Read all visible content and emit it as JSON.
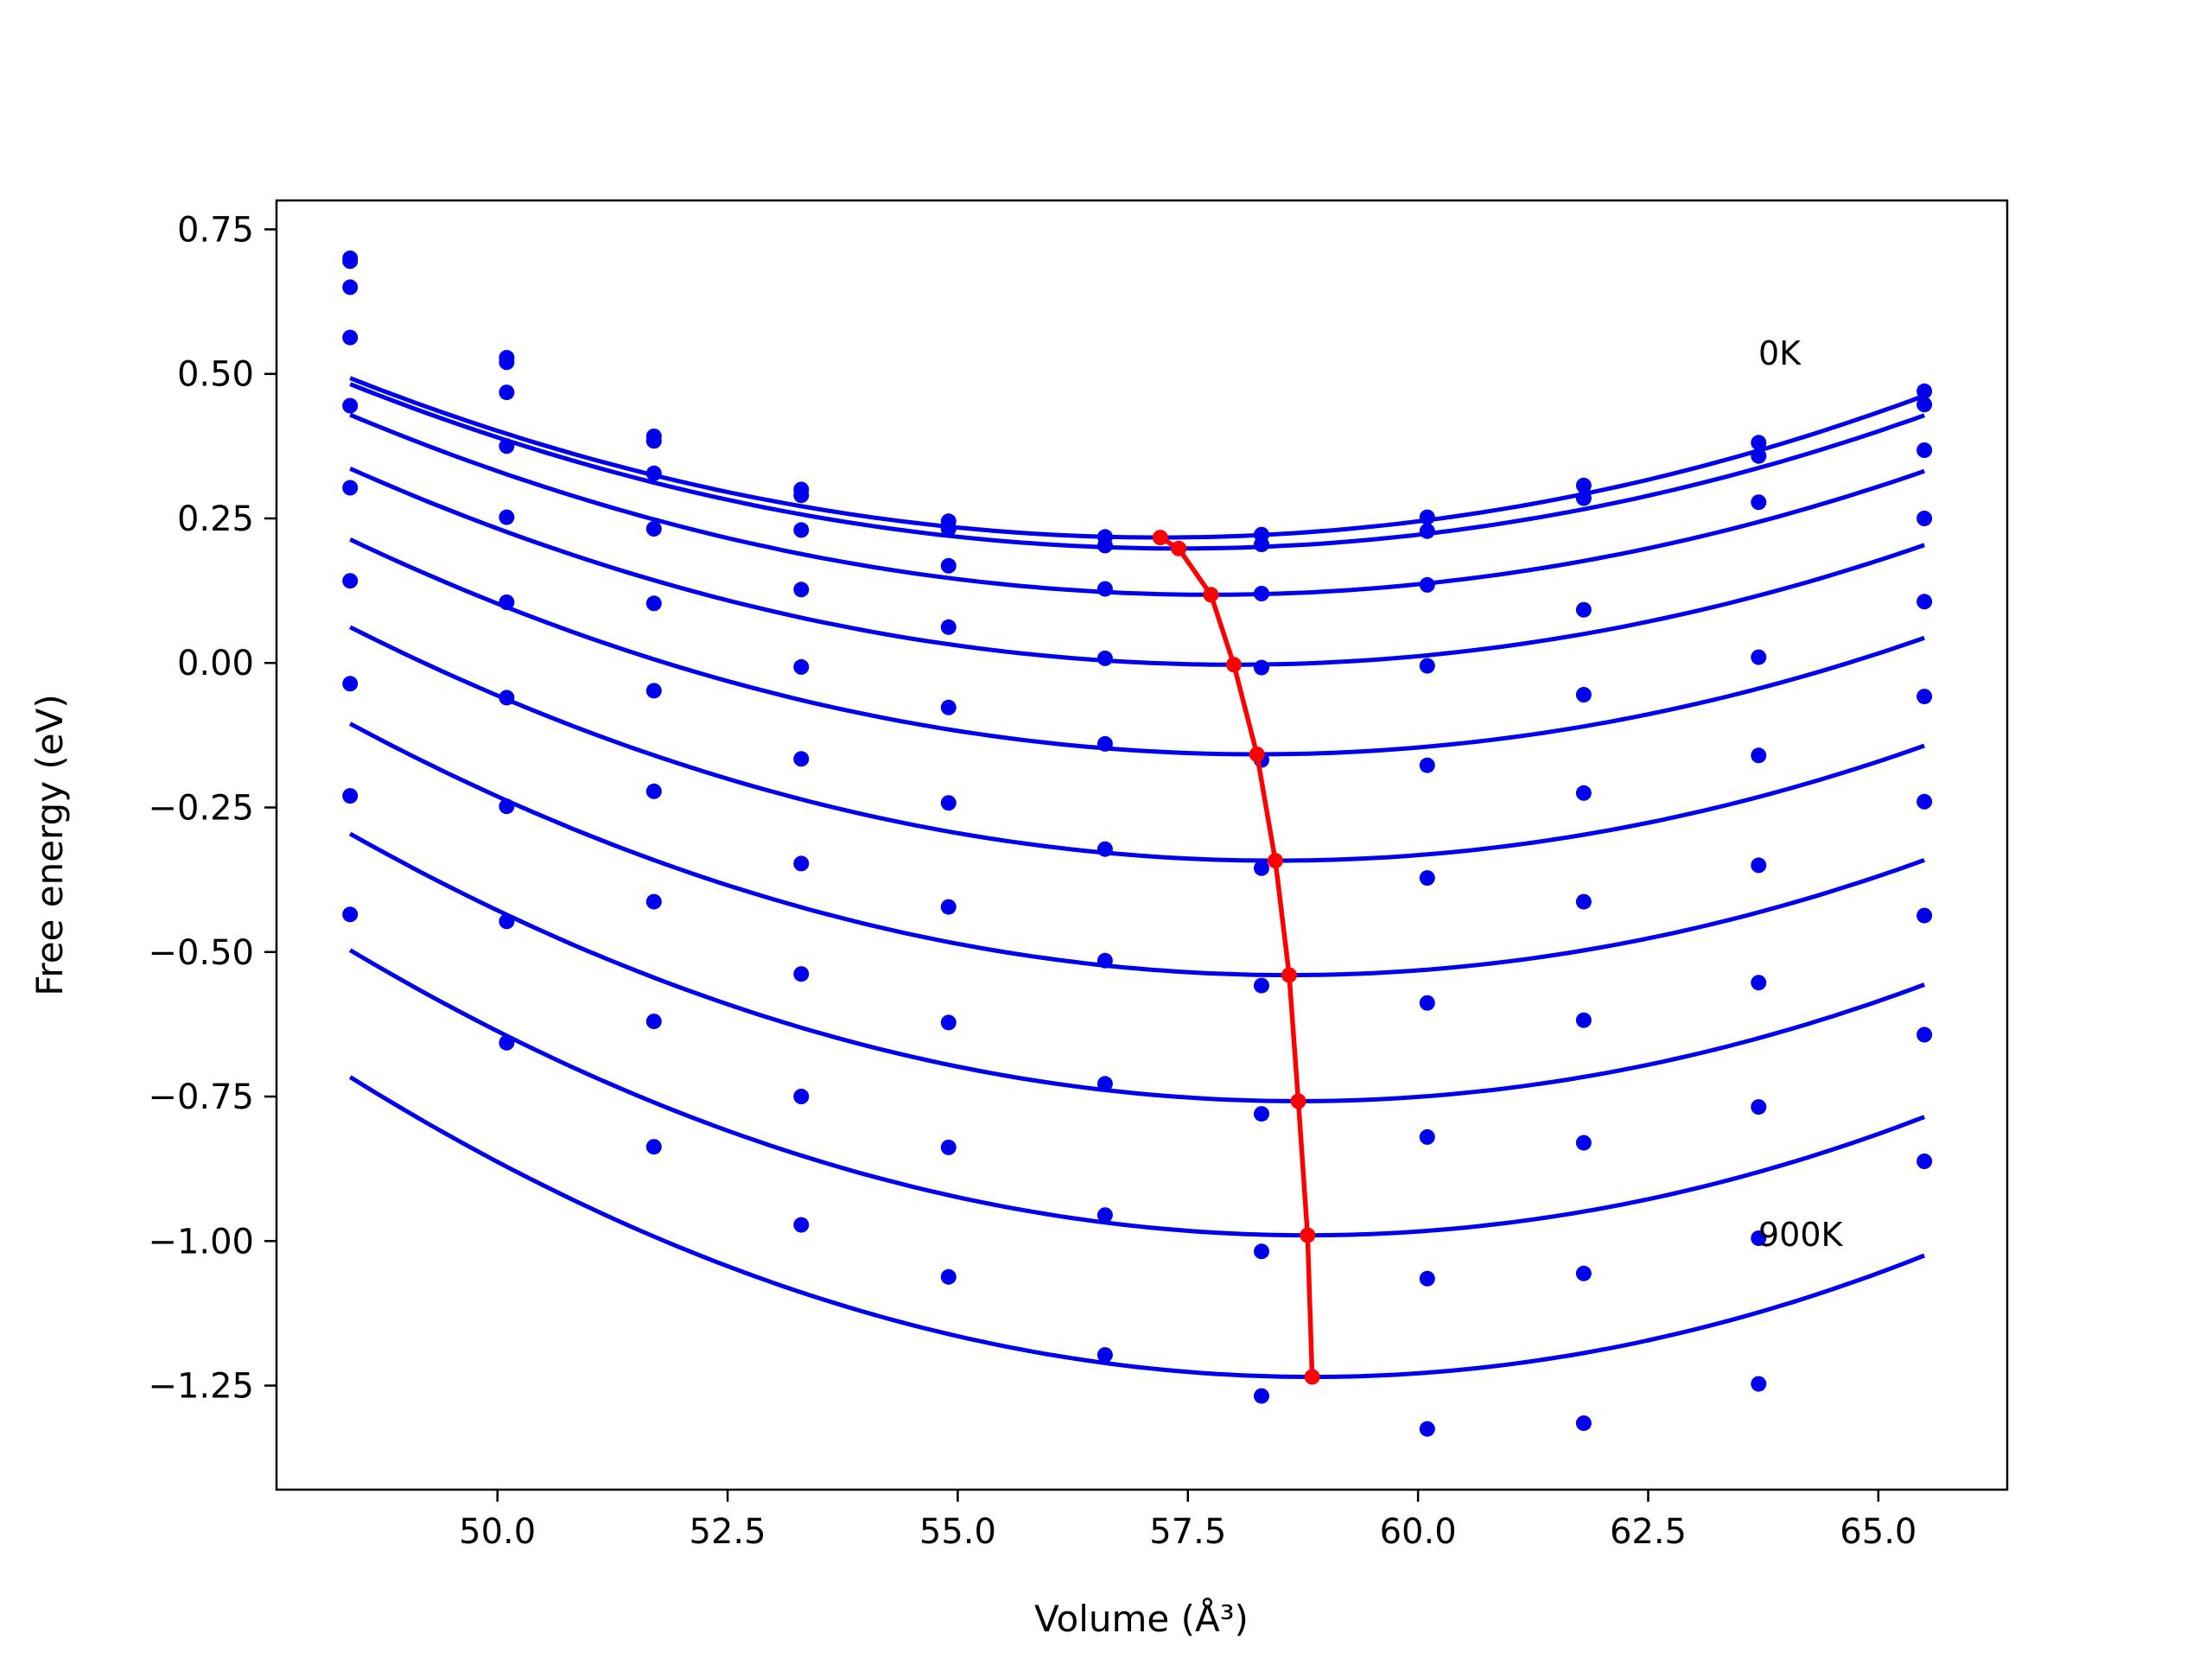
{
  "chart_data": {
    "type": "scatter",
    "title": "",
    "xlabel": "Volume (Å³)",
    "ylabel": "Free energy (eV)",
    "xlim": [
      47.6,
      66.4
    ],
    "ylim": [
      -1.43,
      0.8
    ],
    "xticks": [
      50.0,
      52.5,
      55.0,
      57.5,
      60.0,
      62.5,
      65.0
    ],
    "xtick_labels": [
      "50.0",
      "52.5",
      "55.0",
      "57.5",
      "60.0",
      "62.5",
      "65.0"
    ],
    "yticks": [
      0.75,
      0.5,
      0.25,
      0.0,
      -0.25,
      -0.5,
      -0.75,
      -1.0,
      -1.25
    ],
    "ytick_labels": [
      "0.75",
      "0.50",
      "0.25",
      "0.00",
      "−0.25",
      "−0.50",
      "−0.75",
      "−1.00",
      "−1.25"
    ],
    "grid": false,
    "annotations": [
      {
        "text": "0K",
        "x": 63.7,
        "y": 0.53
      },
      {
        "text": "900K",
        "x": 63.7,
        "y": -1.0
      }
    ],
    "colors": {
      "series": "#0000ee",
      "minimum": "#ff0000"
    },
    "volumes": [
      48.4,
      50.1,
      51.7,
      53.3,
      54.9,
      56.6,
      58.3,
      60.1,
      61.8,
      63.7,
      65.5
    ],
    "series": [
      {
        "points": [
          0.7,
          0.528,
          0.392,
          0.3,
          0.245,
          0.218,
          0.222,
          0.252,
          0.307,
          0.381,
          0.47
        ],
        "fit": {
          "min_x": 57.2,
          "min_y": 0.217,
          "curvature": 0.00356
        }
      },
      {
        "points": [
          0.695,
          0.52,
          0.384,
          0.29,
          0.232,
          0.203,
          0.205,
          0.228,
          0.285,
          0.358,
          0.447
        ],
        "fit": {
          "min_x": 57.4,
          "min_y": 0.198,
          "curvature": 0.00351
        }
      },
      {
        "points": [
          0.65,
          0.468,
          0.328,
          0.23,
          0.168,
          0.128,
          0.12,
          0.135,
          0.092,
          0.278,
          0.368
        ],
        "fit": {
          "min_x": 57.75,
          "min_y": 0.118,
          "curvature": 0.00356
        }
      },
      {
        "points": [
          0.563,
          0.375,
          0.232,
          0.127,
          0.062,
          0.008,
          -0.008,
          -0.005,
          -0.055,
          0.01,
          0.25
        ],
        "fit": {
          "min_x": 58.0,
          "min_y": -0.003,
          "curvature": 0.00368
        }
      },
      {
        "points": [
          0.445,
          0.252,
          0.103,
          -0.007,
          -0.077,
          -0.14,
          -0.168,
          -0.177,
          -0.225,
          -0.16,
          0.106
        ],
        "fit": {
          "min_x": 58.25,
          "min_y": -0.158,
          "curvature": 0.00383
        }
      },
      {
        "points": [
          0.303,
          0.105,
          -0.048,
          -0.166,
          -0.242,
          -0.322,
          -0.355,
          -0.372,
          -0.413,
          -0.35,
          -0.058
        ],
        "fit": {
          "min_x": 58.45,
          "min_y": -0.342,
          "curvature": 0.004
        }
      },
      {
        "points": [
          0.142,
          -0.06,
          -0.222,
          -0.347,
          -0.422,
          -0.515,
          -0.558,
          -0.588,
          -0.618,
          -0.553,
          -0.24
        ],
        "fit": {
          "min_x": 58.6,
          "min_y": -0.54,
          "curvature": 0.00418
        }
      },
      {
        "points": [
          -0.036,
          -0.248,
          -0.413,
          -0.538,
          -0.622,
          -0.728,
          -0.78,
          -0.82,
          -0.83,
          -0.768,
          -0.437
        ],
        "fit": {
          "min_x": 58.7,
          "min_y": -0.758,
          "curvature": 0.00436
        }
      },
      {
        "points": [
          -0.23,
          -0.447,
          -0.62,
          -0.75,
          -0.838,
          -0.955,
          -1.018,
          -1.065,
          -1.056,
          -0.995,
          -0.643
        ],
        "fit": {
          "min_x": 58.8,
          "min_y": -0.99,
          "curvature": 0.00456
        }
      },
      {
        "points": [
          -0.435,
          -0.657,
          -0.837,
          -0.972,
          -1.062,
          -1.197,
          -1.268,
          -1.325,
          -1.315,
          -1.247,
          -0.862
        ],
        "fit": {
          "min_x": 58.85,
          "min_y": -1.235,
          "curvature": 0.00475
        }
      }
    ],
    "minima": {
      "x": [
        57.2,
        57.4,
        57.75,
        58.0,
        58.25,
        58.45,
        58.6,
        58.7,
        58.8,
        58.85
      ],
      "y": [
        0.217,
        0.198,
        0.118,
        -0.003,
        -0.158,
        -0.342,
        -0.54,
        -0.758,
        -0.99,
        -1.235
      ]
    }
  }
}
